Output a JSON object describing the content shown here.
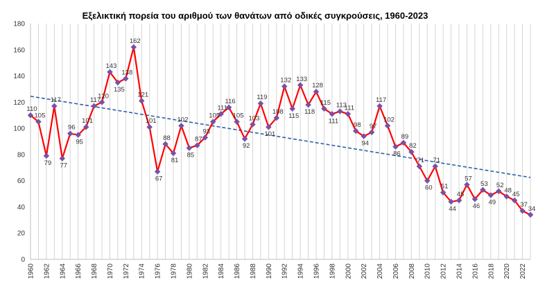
{
  "chart_data": {
    "type": "line",
    "title": "Εξελικτική πορεία του αριθμού των θανάτων από οδικές συγκρούσεις, 1960-2023",
    "xlabel": "",
    "ylabel": "",
    "ylim": [
      0,
      180
    ],
    "yticks": [
      0,
      20,
      40,
      60,
      80,
      100,
      120,
      140,
      160,
      180
    ],
    "xticks": [
      "1960",
      "1962",
      "1964",
      "1966",
      "1968",
      "1970",
      "1972",
      "1974",
      "1976",
      "1978",
      "1980",
      "1982",
      "1984",
      "1986",
      "1988",
      "1990",
      "1992",
      "1994",
      "1996",
      "1998",
      "2000",
      "2002",
      "2004",
      "2006",
      "2008",
      "2010",
      "2012",
      "2014",
      "2016",
      "2018",
      "2020",
      "2022"
    ],
    "grid": "vertical",
    "legend": "none",
    "x": [
      1960,
      1961,
      1962,
      1963,
      1964,
      1965,
      1966,
      1967,
      1968,
      1969,
      1970,
      1971,
      1972,
      1973,
      1974,
      1975,
      1976,
      1977,
      1978,
      1979,
      1980,
      1981,
      1982,
      1983,
      1984,
      1985,
      1986,
      1987,
      1988,
      1989,
      1990,
      1991,
      1992,
      1993,
      1994,
      1995,
      1996,
      1997,
      1998,
      1999,
      2000,
      2001,
      2002,
      2003,
      2004,
      2005,
      2006,
      2007,
      2008,
      2009,
      2010,
      2011,
      2012,
      2013,
      2014,
      2015,
      2016,
      2017,
      2018,
      2019,
      2020,
      2021,
      2022,
      2023
    ],
    "series": [
      {
        "values": [
          110,
          105,
          79,
          117,
          77,
          96,
          95,
          101,
          117,
          120,
          143,
          135,
          138,
          162,
          121,
          101,
          67,
          88,
          81,
          102,
          85,
          87,
          93,
          105,
          111,
          116,
          105,
          92,
          103,
          119,
          101,
          108,
          132,
          115,
          133,
          118,
          128,
          115,
          111,
          113,
          111,
          98,
          94,
          97,
          117,
          102,
          86,
          89,
          82,
          71,
          60,
          71,
          51,
          44,
          45,
          57,
          46,
          53,
          49,
          52,
          48,
          45,
          37,
          34
        ],
        "labels": [
          "110",
          "105",
          "79",
          "117",
          "77",
          "96",
          "95",
          "101",
          "117",
          "120",
          "143",
          "135",
          "138",
          "162",
          "121",
          "101",
          "67",
          "88",
          "81",
          "102",
          "85",
          "87",
          "93",
          "105",
          "111",
          "116",
          "105",
          "92",
          "103",
          "119",
          "101",
          "108",
          "132",
          "115",
          "133",
          "118",
          "128",
          "115",
          "111",
          "113",
          "111",
          "98",
          "94",
          "97",
          "117",
          "102",
          "86",
          "89",
          "82",
          "71",
          "60",
          "71",
          "51",
          "44",
          "45",
          "57",
          "46",
          "53",
          "49",
          "52",
          "48",
          "45",
          "37",
          "34"
        ],
        "color": "#ff0000",
        "marker_color": "#7b4fa6"
      }
    ],
    "trendline": {
      "style": "dashed",
      "color": "#2e5ea8",
      "start_value": 124.5,
      "end_value": 62.5
    }
  }
}
